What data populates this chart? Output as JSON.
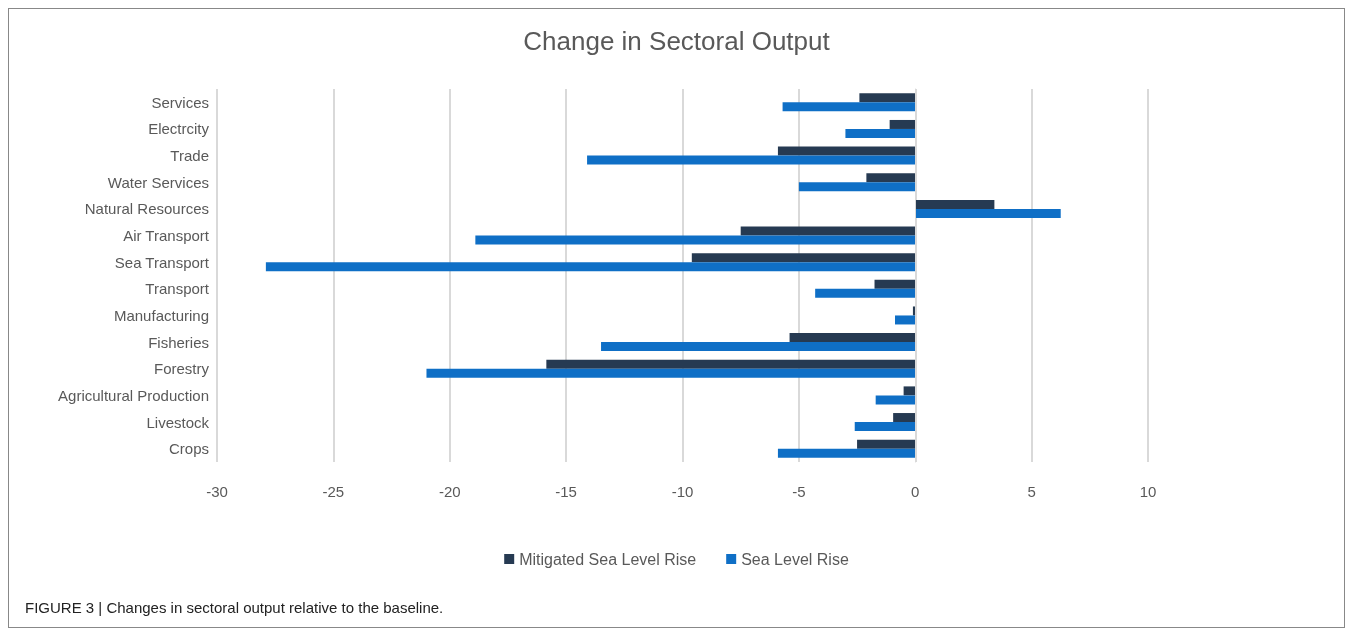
{
  "chart_data": {
    "type": "bar",
    "orientation": "horizontal",
    "title": "Change in Sectoral Output",
    "categories": [
      "Services",
      "Electrcity",
      "Trade",
      "Water Services",
      "Natural Resources",
      "Air Transport",
      "Sea Transport",
      "Transport",
      "Manufacturing",
      "Fisheries",
      "Forestry",
      "Agricultural Production",
      "Livestock",
      "Crops"
    ],
    "series": [
      {
        "name": "Mitigated Sea Level Rise",
        "color": "#263a52",
        "values": [
          -2.4,
          -1.1,
          -5.9,
          -2.1,
          3.4,
          -7.5,
          -9.6,
          -1.75,
          -0.1,
          -5.4,
          -15.85,
          -0.5,
          -0.95,
          -2.5
        ]
      },
      {
        "name": "Sea Level Rise",
        "color": "#0f6fc6",
        "values": [
          -5.7,
          -3.0,
          -14.1,
          -5.0,
          6.25,
          -18.9,
          -27.9,
          -4.3,
          -0.87,
          -13.5,
          -21.0,
          -1.7,
          -2.6,
          -5.9
        ]
      }
    ],
    "xlim": [
      -30,
      10
    ],
    "xticks": [
      -30,
      -25,
      -20,
      -15,
      -10,
      -5,
      0,
      5,
      10
    ],
    "grid": "x",
    "legend": "bottom",
    "annotations": [
      "FIGURE 3 | Changes in sectoral output relative to the baseline."
    ]
  }
}
